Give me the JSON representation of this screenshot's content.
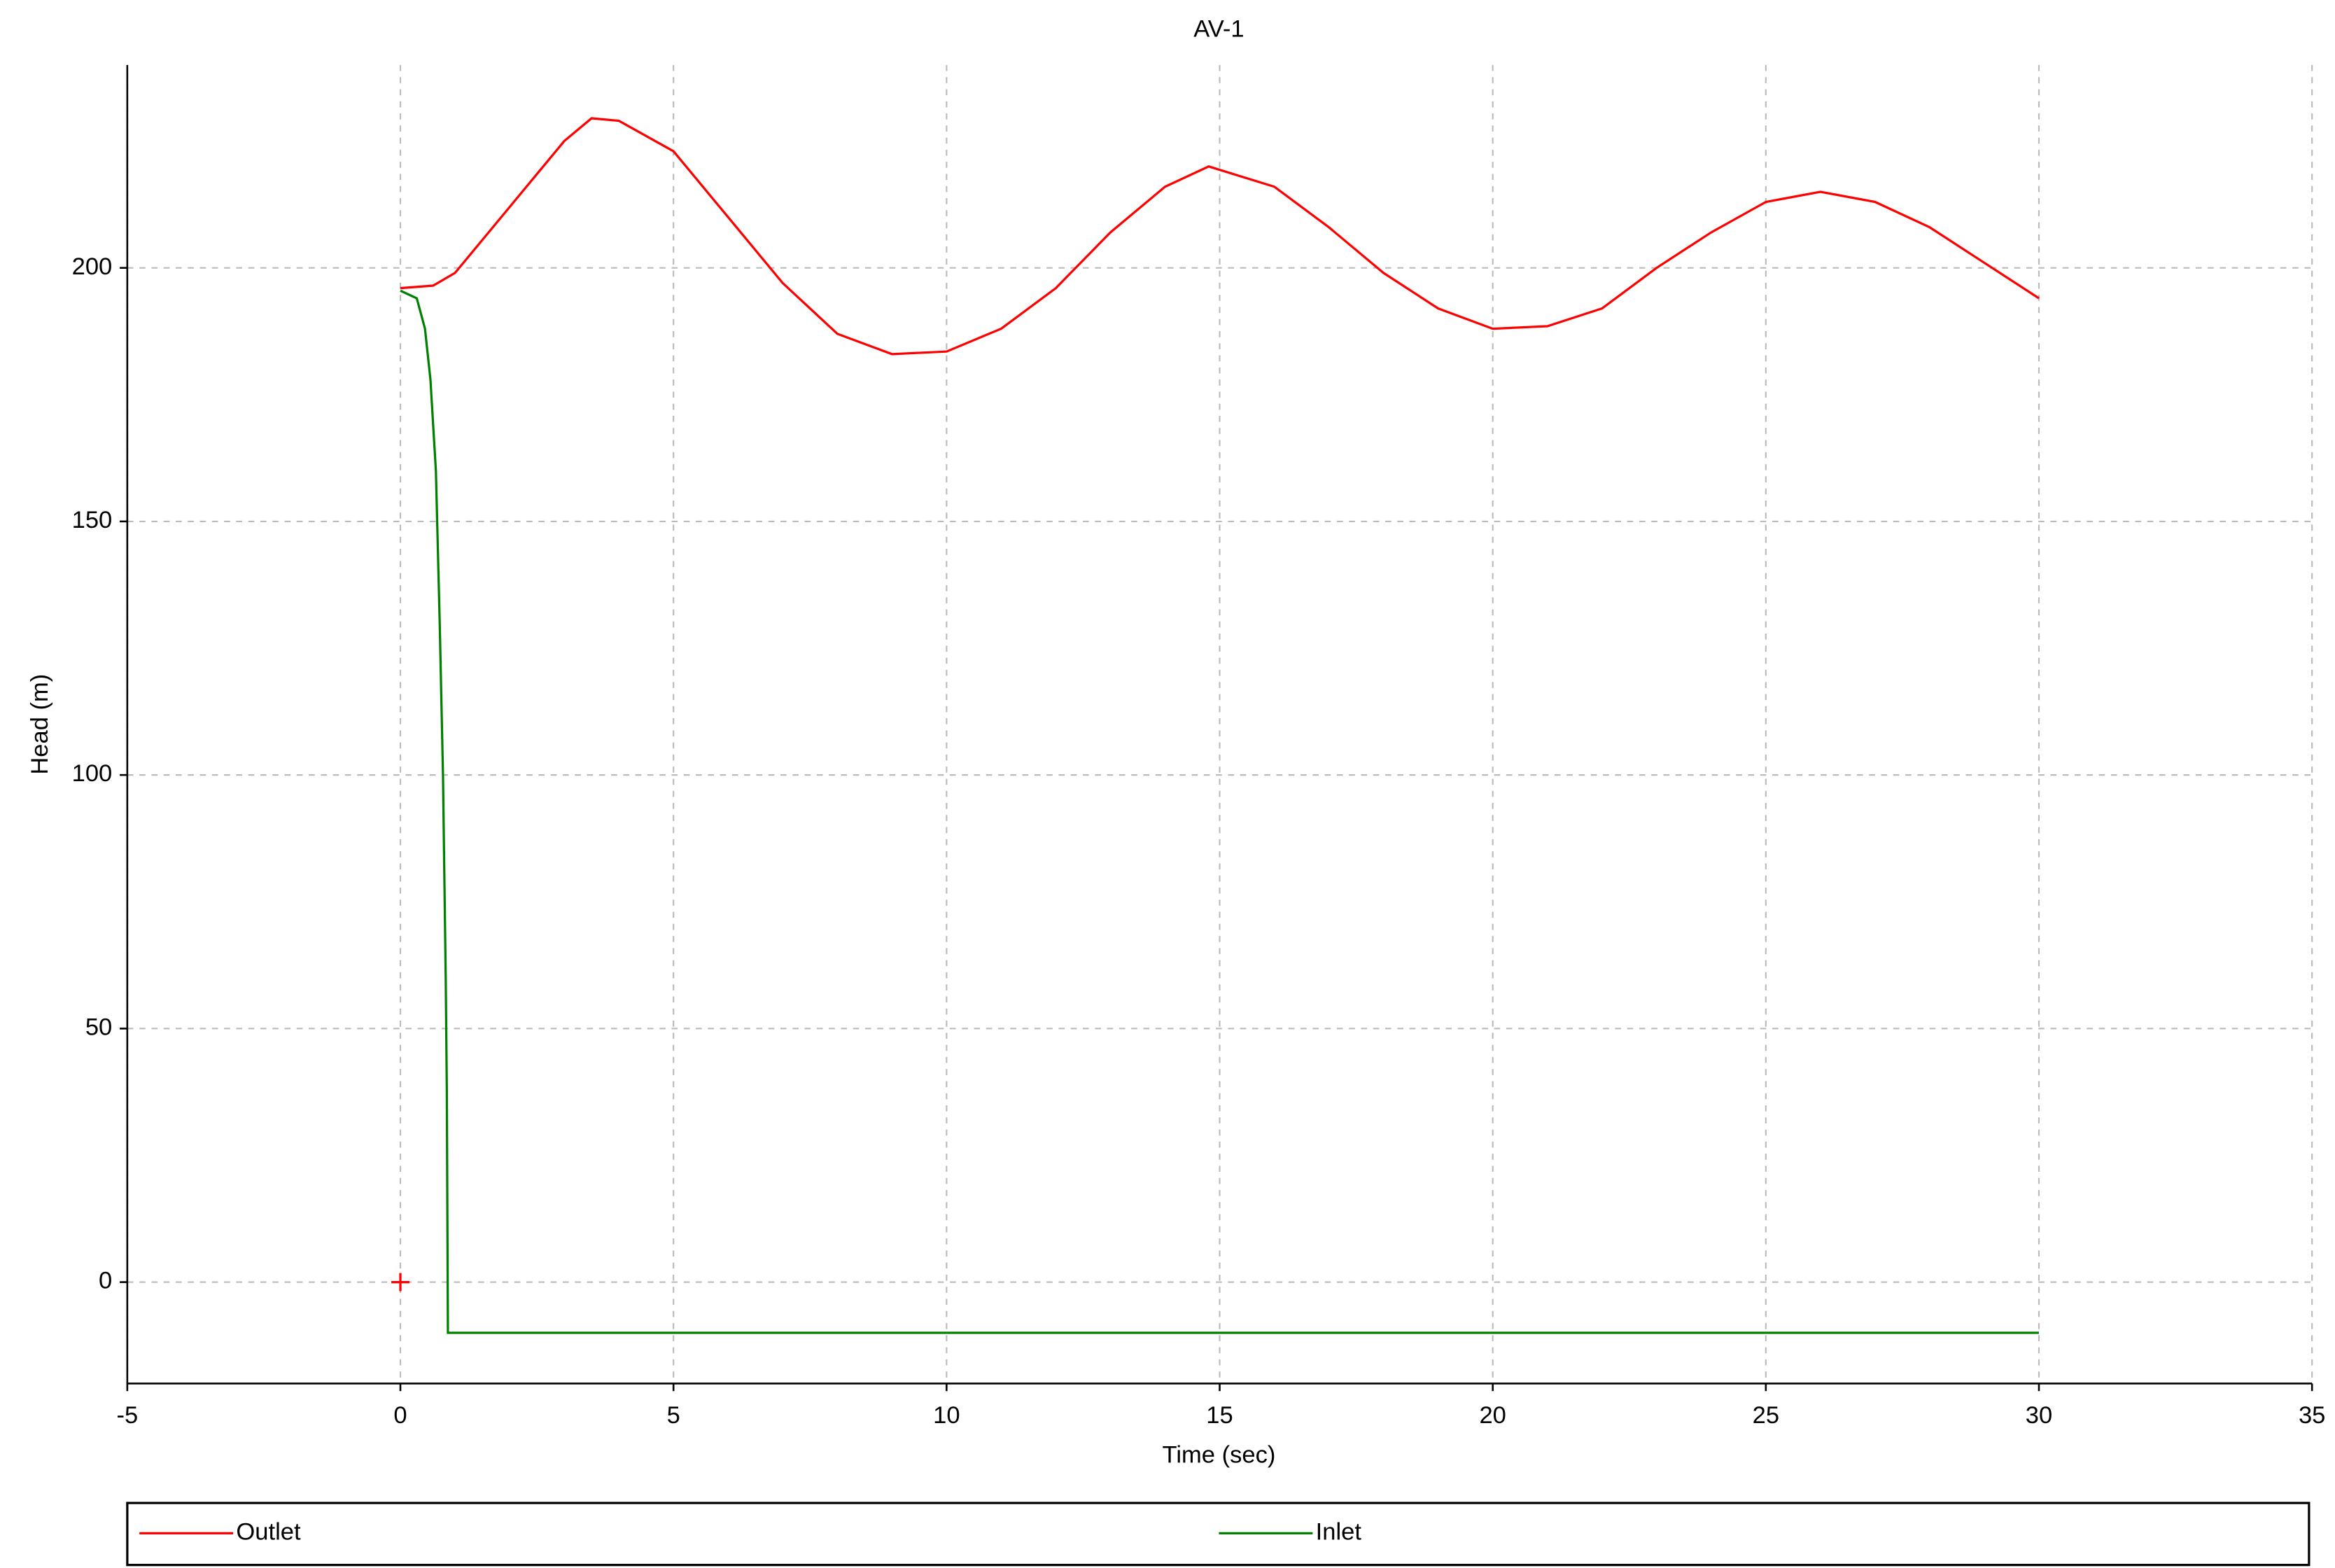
{
  "chart_data": {
    "type": "line",
    "title": "AV-1",
    "x_label": "Time (sec)",
    "y_label": "Head (m)",
    "xlim": [
      -5,
      35
    ],
    "xticks": [
      -5,
      0,
      5,
      10,
      15,
      20,
      25,
      30,
      35
    ],
    "ylim": [
      -20,
      240
    ],
    "yticks": [
      0,
      50,
      100,
      150,
      200
    ],
    "grid": true,
    "legend": "bottom",
    "series": [
      {
        "name": "Outlet",
        "color": "#ff0000",
        "x": [
          0,
          0.6,
          1,
          2,
          3,
          3.5,
          4,
          5,
          6,
          7,
          8,
          9,
          10,
          11,
          12,
          13,
          14,
          14.8,
          16,
          17,
          18,
          19,
          20,
          21,
          22,
          23,
          24,
          25,
          26,
          27,
          28,
          29,
          30
        ],
        "values": [
          196,
          196.5,
          199,
          212,
          225,
          229.5,
          229,
          223,
          210,
          197,
          187,
          183,
          183.5,
          188,
          196,
          207,
          216,
          220,
          216,
          208,
          199,
          192,
          188,
          188.5,
          192,
          200,
          207,
          213,
          215,
          213,
          208,
          201,
          194
        ]
      },
      {
        "name": "Inlet",
        "color": "#008000",
        "x": [
          0,
          0.3,
          0.45,
          0.55,
          0.65,
          0.72,
          0.78,
          0.83,
          0.85,
          0.87,
          30
        ],
        "values": [
          195.5,
          194,
          188,
          178,
          160,
          130,
          100,
          60,
          38,
          -10,
          -10
        ]
      }
    ],
    "markers": [
      {
        "x": 0,
        "y": 0,
        "color": "#ff0000"
      }
    ]
  }
}
